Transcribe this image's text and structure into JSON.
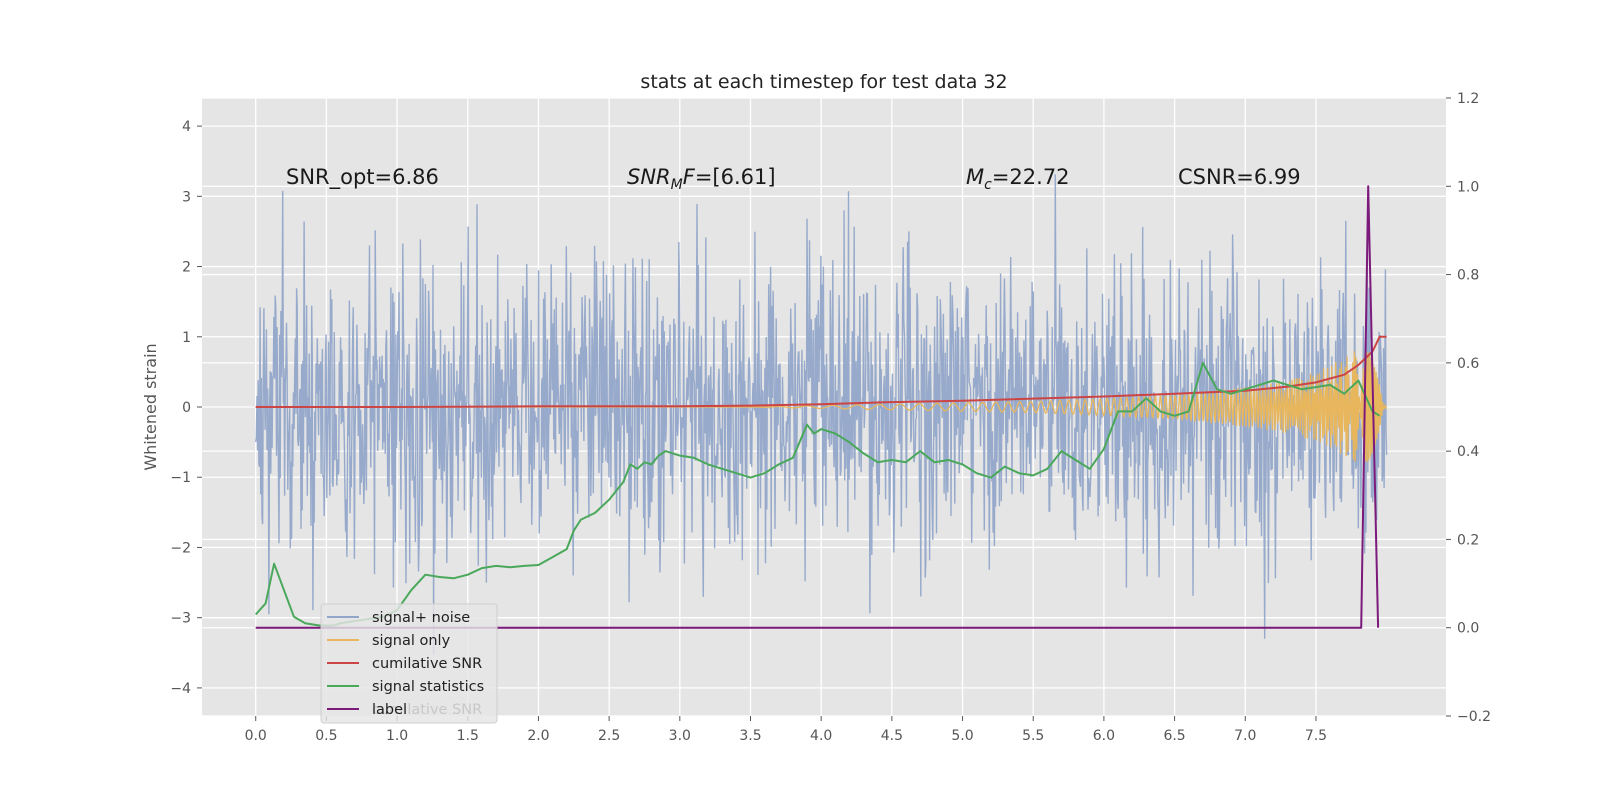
{
  "chart_data": {
    "type": "line",
    "title": "stats at each timestep for test data 32",
    "ylabel": "Whitened strain",
    "xlabel": "",
    "xlim": [
      -0.38,
      8.42
    ],
    "ylim": [
      -4.4,
      4.4
    ],
    "y2lim": [
      -0.2,
      1.2
    ],
    "xticks": [
      "0.0",
      "0.5",
      "1.0",
      "1.5",
      "2.0",
      "2.5",
      "3.0",
      "3.5",
      "4.0",
      "4.5",
      "5.0",
      "5.5",
      "6.0",
      "6.5",
      "7.0",
      "7.5"
    ],
    "yticks": [
      "−4",
      "−3",
      "−2",
      "−1",
      "0",
      "1",
      "2",
      "3",
      "4"
    ],
    "y2ticks": [
      "−0.2",
      "0.0",
      "0.2",
      "0.4",
      "0.6",
      "0.8",
      "1.0",
      "1.2"
    ],
    "grid": true,
    "legend_position": "lower-left",
    "annotations": {
      "snr_opt": "SNR_opt=6.86",
      "snr_mf_main": "SNR",
      "snr_mf_sub": "M",
      "snr_mf_rest": "F",
      "snr_mf_value": "=[6.61]",
      "mc_main": "M",
      "mc_sub": "c",
      "mc_value": "=22.72",
      "csnr": "CSNR=6.99"
    },
    "series": [
      {
        "name": "signal+ noise",
        "color": "#92a6c9",
        "axis": "left",
        "kind": "noise",
        "x_range": [
          0.0,
          8.0
        ],
        "approx_std": 1.0,
        "approx_range": [
          -4.0,
          3.95
        ]
      },
      {
        "name": "signal only",
        "color": "#e8b65c",
        "axis": "left",
        "kind": "chirp",
        "x_range": [
          0.0,
          8.0
        ],
        "amplitude_points": {
          "x": [
            0.0,
            3.5,
            4.5,
            5.5,
            6.0,
            6.5,
            7.0,
            7.3,
            7.5,
            7.7,
            7.85,
            7.95,
            8.0
          ],
          "amp": [
            0.0,
            0.0,
            0.04,
            0.08,
            0.12,
            0.18,
            0.28,
            0.38,
            0.5,
            0.7,
            0.9,
            0.4,
            0.0
          ]
        }
      },
      {
        "name": "cumilative SNR",
        "color": "#cc4444",
        "axis": "left",
        "x": [
          0.0,
          1.0,
          2.0,
          3.0,
          3.5,
          4.0,
          4.5,
          5.0,
          5.5,
          6.0,
          6.5,
          7.0,
          7.3,
          7.5,
          7.7,
          7.8,
          7.9,
          7.95,
          8.0
        ],
        "y": [
          0.0,
          0.0,
          0.01,
          0.01,
          0.02,
          0.04,
          0.07,
          0.09,
          0.12,
          0.15,
          0.19,
          0.23,
          0.29,
          0.35,
          0.46,
          0.6,
          0.79,
          1.0,
          1.0
        ]
      },
      {
        "name": "signal statistics",
        "color": "#4aa85b",
        "axis": "right",
        "x": [
          0.0,
          0.07,
          0.13,
          0.2,
          0.27,
          0.35,
          0.45,
          0.55,
          0.6,
          0.7,
          0.8,
          0.9,
          1.0,
          1.1,
          1.2,
          1.3,
          1.4,
          1.5,
          1.6,
          1.7,
          1.8,
          1.9,
          2.0,
          2.1,
          2.2,
          2.25,
          2.3,
          2.4,
          2.5,
          2.6,
          2.65,
          2.7,
          2.75,
          2.8,
          2.85,
          2.9,
          2.95,
          3.0,
          3.1,
          3.2,
          3.3,
          3.4,
          3.5,
          3.6,
          3.7,
          3.8,
          3.9,
          3.95,
          4.0,
          4.1,
          4.2,
          4.3,
          4.4,
          4.5,
          4.6,
          4.7,
          4.8,
          4.9,
          5.0,
          5.1,
          5.2,
          5.3,
          5.4,
          5.5,
          5.6,
          5.7,
          5.8,
          5.9,
          6.0,
          6.1,
          6.2,
          6.3,
          6.4,
          6.5,
          6.6,
          6.7,
          6.8,
          6.9,
          7.0,
          7.1,
          7.2,
          7.3,
          7.4,
          7.5,
          7.6,
          7.7,
          7.8,
          7.9,
          7.95
        ],
        "y": [
          0.03,
          0.055,
          0.145,
          0.085,
          0.025,
          0.01,
          0.005,
          0.005,
          0.01,
          0.015,
          0.02,
          0.025,
          0.04,
          0.085,
          0.12,
          0.115,
          0.112,
          0.12,
          0.135,
          0.14,
          0.137,
          0.14,
          0.142,
          0.16,
          0.178,
          0.22,
          0.245,
          0.26,
          0.29,
          0.33,
          0.37,
          0.36,
          0.375,
          0.37,
          0.39,
          0.4,
          0.395,
          0.39,
          0.385,
          0.37,
          0.36,
          0.35,
          0.34,
          0.35,
          0.37,
          0.385,
          0.46,
          0.44,
          0.45,
          0.44,
          0.42,
          0.395,
          0.375,
          0.38,
          0.375,
          0.4,
          0.375,
          0.38,
          0.37,
          0.35,
          0.34,
          0.365,
          0.35,
          0.345,
          0.36,
          0.4,
          0.38,
          0.36,
          0.405,
          0.49,
          0.49,
          0.52,
          0.49,
          0.48,
          0.49,
          0.6,
          0.54,
          0.53,
          0.54,
          0.55,
          0.56,
          0.55,
          0.54,
          0.545,
          0.55,
          0.53,
          0.56,
          0.49,
          0.48
        ]
      },
      {
        "name": "label",
        "color": "#7b1a7b",
        "axis": "right",
        "x": [
          0.0,
          7.82,
          7.87,
          7.94
        ],
        "y": [
          0.0,
          0.0,
          1.0,
          0.0
        ]
      }
    ],
    "legend_overlap_text": "cumilative SNR"
  }
}
